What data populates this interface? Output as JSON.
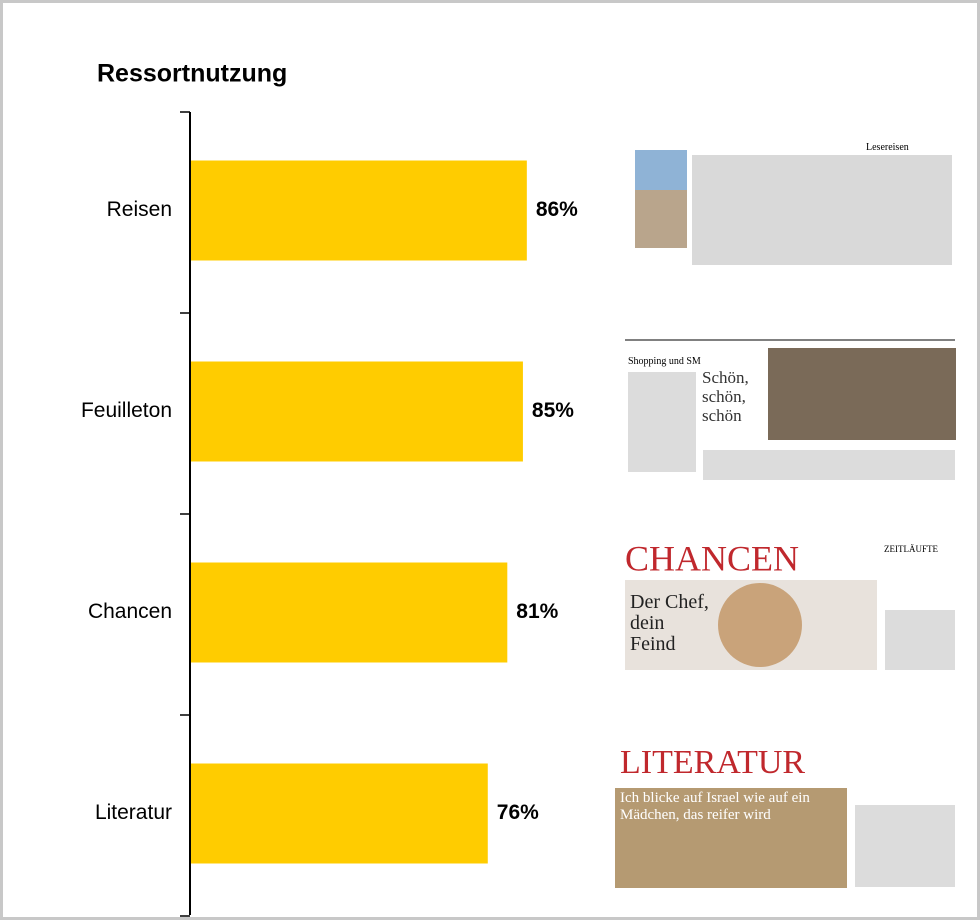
{
  "chart_data": {
    "type": "bar",
    "orientation": "horizontal",
    "title": "Ressortnutzung",
    "categories": [
      "Reisen",
      "Feuilleton",
      "Chancen",
      "Literatur"
    ],
    "values": [
      86,
      85,
      81,
      76
    ],
    "value_labels": [
      "86%",
      "85%",
      "81%",
      "76%"
    ],
    "color": "#ffcc00"
  },
  "thumbnails": [
    {
      "headline": "Lesereisen"
    },
    {
      "headline": "Schön, schön, schön",
      "kicker": "Shopping und SM"
    },
    {
      "headline": "CHANCEN",
      "subline": "Der Chef, dein Feind",
      "kicker": "ZEITLÄUFTE"
    },
    {
      "headline": "LITERATUR",
      "subline": "Ich blicke auf Israel wie auf ein Mädchen, das reifer wird"
    }
  ]
}
